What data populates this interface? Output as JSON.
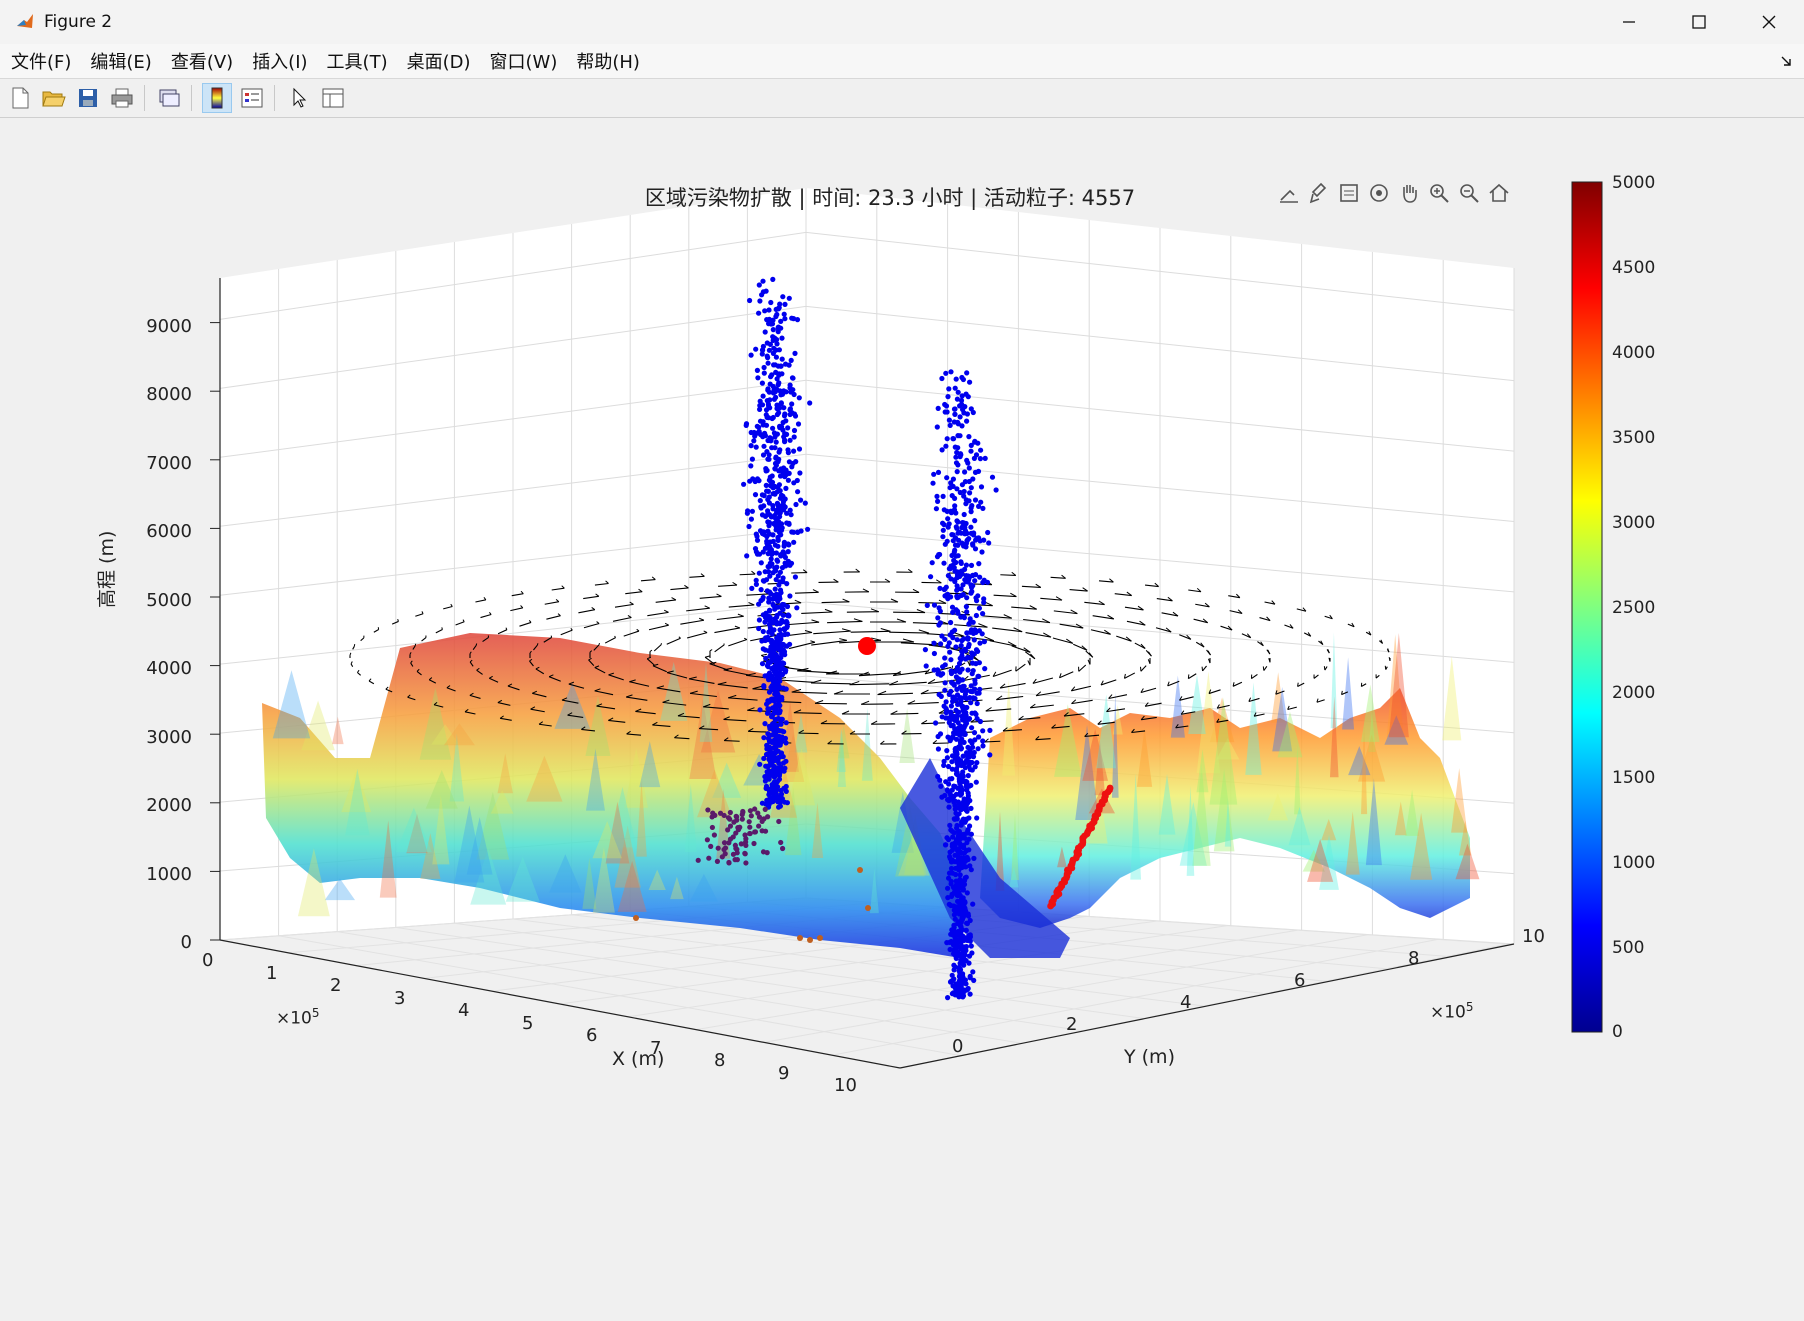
{
  "window": {
    "title": "Figure 2"
  },
  "menu": {
    "items": [
      "文件(F)",
      "编辑(E)",
      "查看(V)",
      "插入(I)",
      "工具(T)",
      "桌面(D)",
      "窗口(W)",
      "帮助(H)"
    ]
  },
  "plot": {
    "title": "区域污染物扩散 | 时间: 23.3 小时 | 活动粒子: 4557",
    "xlabel": "X (m)",
    "ylabel": "Y (m)",
    "zlabel": "高程 (m)",
    "x_ticks": [
      "0",
      "1",
      "2",
      "3",
      "4",
      "5",
      "6",
      "7",
      "8",
      "9",
      "10"
    ],
    "y_ticks": [
      "0",
      "2",
      "4",
      "6",
      "8",
      "10"
    ],
    "z_ticks": [
      "0",
      "1000",
      "2000",
      "3000",
      "4000",
      "5000",
      "6000",
      "7000",
      "8000",
      "9000"
    ],
    "x_multiplier": "×10",
    "x_multiplier_exp": "5",
    "y_multiplier": "×10",
    "y_multiplier_exp": "5",
    "colorbar_ticks": [
      "5000",
      "4500",
      "4000",
      "3500",
      "3000",
      "2500",
      "2000",
      "1500",
      "1000",
      "500",
      "0"
    ]
  },
  "chart_data": {
    "type": "scatter",
    "title": "区域污染物扩散 | 时间: 23.3 小时 | 活动粒子: 4557",
    "xlabel": "X (m)",
    "ylabel": "Y (m)",
    "zlabel": "高程 (m)",
    "xlim": [
      0,
      1000000
    ],
    "ylim": [
      0,
      1000000
    ],
    "zlim": [
      0,
      9000
    ],
    "colorbar": {
      "colormap": "jet",
      "range": [
        0,
        5000
      ]
    },
    "components": [
      "terrain surface colored by elevation",
      "wind quiver field at ~6000 m",
      "particle scatter plumes",
      "source marker"
    ],
    "time_hours": 23.3,
    "active_particles": 4557
  },
  "colors": {
    "window_bg": "#f0f0f0",
    "particle": "#0000ee",
    "quiver": "#000000",
    "source": "#ff0000"
  }
}
